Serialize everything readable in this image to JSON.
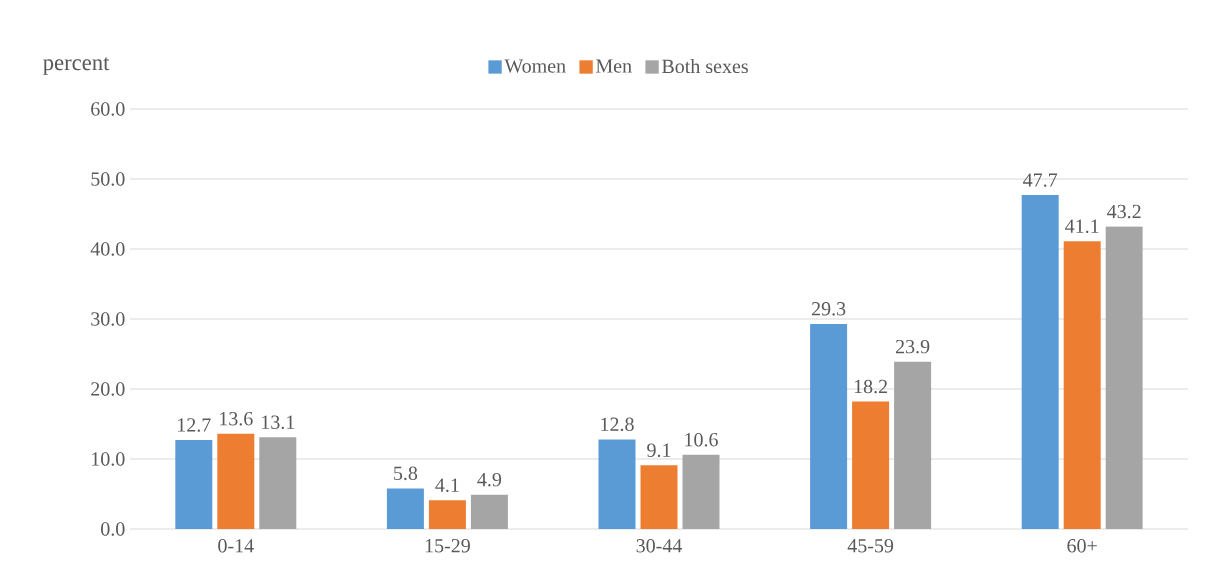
{
  "chart_data": {
    "type": "bar",
    "ylabel": "percent",
    "categories": [
      "0-14",
      "15-29",
      "30-44",
      "45-59",
      "60+"
    ],
    "series": [
      {
        "name": "Women",
        "color": "#5b9bd5",
        "values": [
          12.7,
          5.8,
          12.8,
          29.3,
          47.7
        ]
      },
      {
        "name": "Men",
        "color": "#ed7d31",
        "values": [
          13.6,
          4.1,
          9.1,
          18.2,
          41.1
        ]
      },
      {
        "name": "Both sexes",
        "color": "#a5a5a5",
        "values": [
          13.1,
          4.9,
          10.6,
          23.9,
          43.2
        ]
      }
    ],
    "ylim": [
      0,
      60
    ],
    "yticks": [
      {
        "value": 0,
        "label": "0.0"
      },
      {
        "value": 10,
        "label": "10.0"
      },
      {
        "value": 20,
        "label": "20.0"
      },
      {
        "value": 30,
        "label": "30.0"
      },
      {
        "value": 40,
        "label": "40.0"
      },
      {
        "value": 50,
        "label": "50.0"
      },
      {
        "value": 60,
        "label": "60.0"
      }
    ],
    "grid": "y",
    "legend": "top",
    "data_labels": true
  }
}
